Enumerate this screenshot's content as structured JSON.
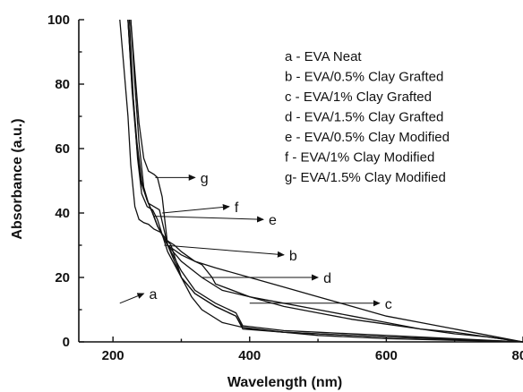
{
  "chart_data": {
    "type": "line",
    "title": "",
    "xlabel": "Wavelength (nm)",
    "ylabel": "Absorbance (a.u.)",
    "xlim": [
      150,
      800
    ],
    "ylim": [
      0,
      100
    ],
    "xticks": [
      200,
      400,
      600,
      800
    ],
    "yticks": [
      0,
      20,
      40,
      60,
      80,
      100
    ],
    "grid": false,
    "legend_position": "top-right",
    "legend": [
      "a - EVA Neat",
      "b - EVA/0.5% Clay Grafted",
      "c - EVA/1% Clay Grafted",
      "d - EVA/1.5% Clay Grafted",
      "e - EVA/0.5% Clay Modified",
      "f - EVA/1% Clay Modified",
      "g- EVA/1.5% Clay Modified"
    ],
    "series": [
      {
        "name": "a",
        "x": [
          210,
          216,
          222,
          226,
          232,
          238,
          245,
          252,
          260,
          270,
          285,
          300,
          305,
          315,
          330,
          360,
          400,
          500,
          600,
          700,
          800
        ],
        "y": [
          100,
          85,
          70,
          55,
          42,
          38,
          37,
          36.5,
          35,
          34,
          30,
          20,
          18,
          14,
          10,
          6,
          4,
          2,
          1,
          0.5,
          0
        ]
      },
      {
        "name": "b",
        "x": [
          222,
          228,
          235,
          242,
          250,
          258,
          265,
          275,
          290,
          300,
          320,
          350,
          400,
          450,
          500,
          550,
          600,
          650,
          700,
          750,
          800
        ],
        "y": [
          100,
          80,
          62,
          50,
          44,
          40,
          36,
          32,
          30,
          28,
          25,
          23,
          20,
          17,
          14,
          11,
          8,
          6,
          4,
          2,
          0
        ]
      },
      {
        "name": "c",
        "x": [
          222,
          228,
          235,
          242,
          250,
          258,
          265,
          280,
          300,
          330,
          360,
          400,
          450,
          500,
          550,
          600,
          650,
          700,
          750,
          800
        ],
        "y": [
          100,
          78,
          60,
          49,
          44,
          40,
          36,
          30,
          25,
          20,
          16,
          14,
          11,
          9,
          7,
          5.5,
          4,
          2.5,
          1.5,
          0
        ]
      },
      {
        "name": "d",
        "x": [
          222,
          228,
          235,
          242,
          250,
          258,
          265,
          280,
          300,
          330,
          345,
          350,
          400,
          450,
          500,
          550,
          600,
          650,
          700,
          750,
          800
        ],
        "y": [
          100,
          79,
          61,
          49,
          44,
          40,
          36,
          30,
          27,
          24,
          20,
          18,
          14,
          12,
          10,
          8,
          6,
          4,
          3,
          1.5,
          0
        ]
      },
      {
        "name": "e",
        "x": [
          224,
          230,
          236,
          242,
          250,
          258,
          265,
          280,
          300,
          320,
          350,
          380,
          390,
          450,
          500,
          600,
          700,
          800
        ],
        "y": [
          100,
          75,
          57,
          46,
          42,
          41,
          38,
          28,
          20,
          15,
          11,
          8,
          4,
          3,
          2.5,
          1.5,
          0.8,
          0
        ]
      },
      {
        "name": "f",
        "x": [
          226,
          232,
          238,
          245,
          252,
          260,
          268,
          280,
          300,
          320,
          350,
          380,
          390,
          450,
          500,
          600,
          700,
          800
        ],
        "y": [
          100,
          80,
          62,
          48,
          43,
          42,
          41,
          30,
          22,
          16,
          12,
          9,
          5,
          3.5,
          3,
          2,
          1,
          0
        ]
      },
      {
        "name": "g",
        "x": [
          226,
          232,
          238,
          245,
          252,
          260,
          265,
          272,
          280,
          300,
          320,
          350,
          380,
          390,
          450,
          500,
          600,
          700,
          800
        ],
        "y": [
          100,
          84,
          68,
          57,
          53,
          52,
          51,
          45,
          30,
          20,
          15,
          11,
          8,
          4.5,
          3,
          2.5,
          1.5,
          0.8,
          0
        ]
      }
    ],
    "annotations": [
      {
        "label": "a",
        "from": [
          210,
          12
        ],
        "to": [
          245,
          15
        ]
      },
      {
        "label": "b",
        "from": [
          275,
          30
        ],
        "to": [
          450,
          27
        ]
      },
      {
        "label": "c",
        "from": [
          400,
          12
        ],
        "to": [
          590,
          12
        ]
      },
      {
        "label": "d",
        "from": [
          330,
          20
        ],
        "to": [
          500,
          20
        ]
      },
      {
        "label": "e",
        "from": [
          260,
          39
        ],
        "to": [
          420,
          38
        ]
      },
      {
        "label": "f",
        "from": [
          272,
          40
        ],
        "to": [
          370,
          42
        ]
      },
      {
        "label": "g",
        "from": [
          262,
          51
        ],
        "to": [
          320,
          51
        ]
      }
    ]
  }
}
